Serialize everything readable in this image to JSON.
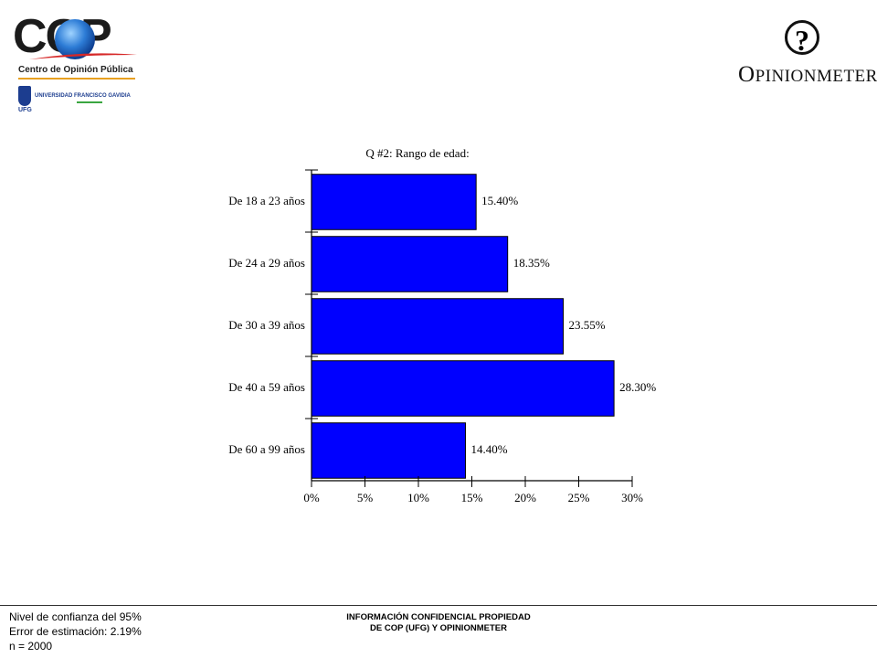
{
  "logos": {
    "cop": {
      "wordmark": "COP",
      "subtitle": "Centro de Opinión Pública",
      "university": "UNIVERSIDAD FRANCISCO GAVIDIA",
      "university_abbr": "UFG"
    },
    "opinionmeter": {
      "symbol": "?",
      "name_first": "O",
      "name_rest": "PINIONMETER"
    }
  },
  "chart_data": {
    "type": "bar",
    "orientation": "horizontal",
    "title": "Q #2: Rango de edad:",
    "categories": [
      "De 18 a 23 años",
      "De 24  a 29 años",
      "De 30 a 39 años",
      "De 40 a 59 años",
      "De 60 a 99 años"
    ],
    "values": [
      15.4,
      18.35,
      23.55,
      28.3,
      14.4
    ],
    "data_labels": [
      "15.40%",
      "18.35%",
      "23.55%",
      "28.30%",
      "14.40%"
    ],
    "x_ticks": [
      0,
      5,
      10,
      15,
      20,
      25,
      30
    ],
    "x_tick_labels": [
      "0%",
      "5%",
      "10%",
      "15%",
      "20%",
      "25%",
      "30%"
    ],
    "xlim": [
      0,
      30
    ],
    "bar_color": "#0000ff",
    "grid": false,
    "legend": "none"
  },
  "footer": {
    "stats": [
      "Nivel de confianza del 95%",
      "Error de estimación: 2.19%",
      "n = 2000"
    ],
    "confidential": [
      "INFORMACIÓN CONFIDENCIAL PROPIEDAD",
      "DE COP (UFG) Y OPINIONMETER"
    ]
  }
}
